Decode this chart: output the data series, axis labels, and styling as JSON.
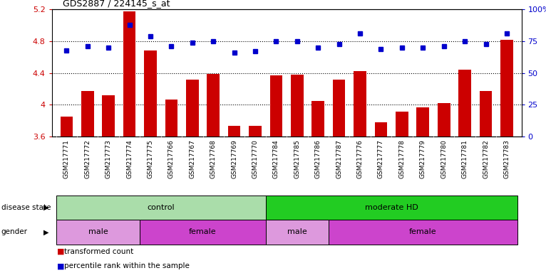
{
  "title": "GDS2887 / 224145_s_at",
  "samples": [
    "GSM217771",
    "GSM217772",
    "GSM217773",
    "GSM217774",
    "GSM217775",
    "GSM217766",
    "GSM217767",
    "GSM217768",
    "GSM217769",
    "GSM217770",
    "GSM217784",
    "GSM217785",
    "GSM217786",
    "GSM217787",
    "GSM217776",
    "GSM217777",
    "GSM217778",
    "GSM217779",
    "GSM217780",
    "GSM217781",
    "GSM217782",
    "GSM217783"
  ],
  "transformed_count": [
    3.85,
    4.17,
    4.12,
    5.18,
    4.68,
    4.07,
    4.32,
    4.39,
    3.73,
    3.73,
    4.37,
    4.38,
    4.05,
    4.32,
    4.42,
    3.78,
    3.91,
    3.97,
    4.02,
    4.44,
    4.17,
    4.82
  ],
  "percentile_rank": [
    68,
    71,
    70,
    88,
    79,
    71,
    74,
    75,
    66,
    67,
    75,
    75,
    70,
    73,
    81,
    69,
    70,
    70,
    71,
    75,
    73,
    81
  ],
  "ylim_left": [
    3.6,
    5.2
  ],
  "ylim_right": [
    0,
    100
  ],
  "yticks_left": [
    3.6,
    4.0,
    4.4,
    4.8,
    5.2
  ],
  "ytick_labels_left": [
    "3.6",
    "4",
    "4.4",
    "4.8",
    "5.2"
  ],
  "yticks_right": [
    0,
    25,
    50,
    75,
    100
  ],
  "ytick_labels_right": [
    "0",
    "25",
    "50",
    "75",
    "100%"
  ],
  "bar_color": "#cc0000",
  "dot_color": "#0000cc",
  "disease_state_groups": [
    {
      "label": "control",
      "start": 0,
      "end": 10,
      "color": "#aaddaa"
    },
    {
      "label": "moderate HD",
      "start": 10,
      "end": 22,
      "color": "#22cc22"
    }
  ],
  "gender_groups": [
    {
      "label": "male",
      "start": 0,
      "end": 4,
      "color": "#dd99dd"
    },
    {
      "label": "female",
      "start": 4,
      "end": 10,
      "color": "#cc44cc"
    },
    {
      "label": "male",
      "start": 10,
      "end": 13,
      "color": "#dd99dd"
    },
    {
      "label": "female",
      "start": 13,
      "end": 22,
      "color": "#cc44cc"
    }
  ],
  "legend_items": [
    {
      "label": "transformed count",
      "color": "#cc0000"
    },
    {
      "label": "percentile rank within the sample",
      "color": "#0000cc"
    }
  ],
  "xtick_bg": "#d0d0d0"
}
